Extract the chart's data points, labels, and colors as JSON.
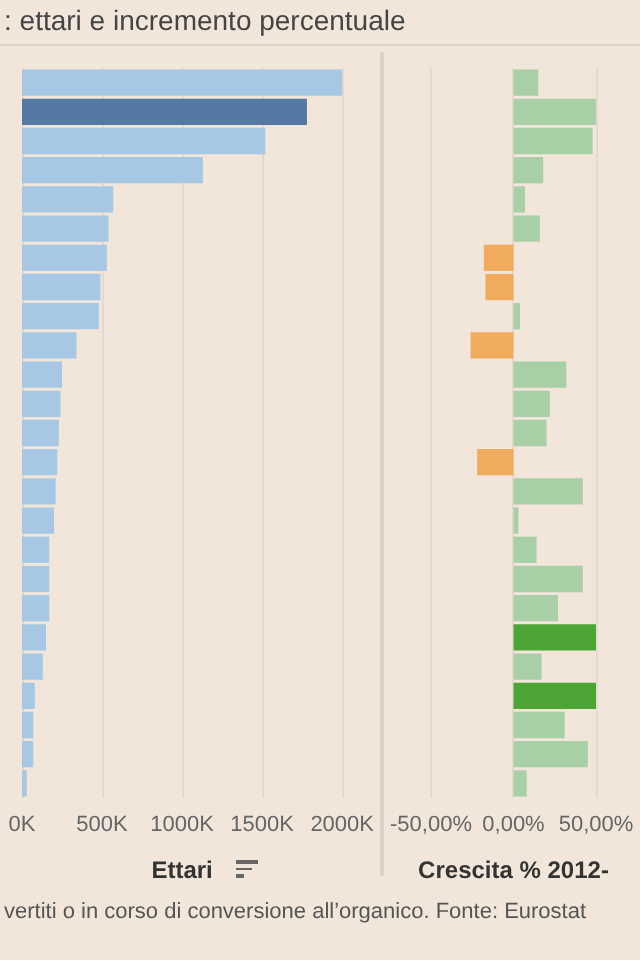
{
  "chart_data": [
    {
      "type": "bar",
      "orientation": "horizontal",
      "title": ": ettari e incremento percentuale",
      "annotations": [
        "vertiti o in corso di conversione all’organico. Fonte: Eurostat"
      ],
      "xlabel": "Ettari",
      "categories": [
        null,
        null,
        null,
        null,
        null,
        null,
        null,
        null,
        null,
        null,
        null,
        null,
        null,
        null,
        null,
        null,
        null,
        null,
        null,
        null,
        null,
        null,
        null,
        null,
        null
      ],
      "values": [
        2000,
        1780,
        1520,
        1130,
        570,
        540,
        530,
        490,
        480,
        340,
        250,
        240,
        230,
        220,
        210,
        200,
        170,
        170,
        170,
        150,
        130,
        80,
        70,
        70,
        30
      ],
      "colors": [
        "#a6c8e4",
        "#5579a5",
        "#a6c8e4",
        "#a6c8e4",
        "#a6c8e4",
        "#a6c8e4",
        "#a6c8e4",
        "#a6c8e4",
        "#a6c8e4",
        "#a6c8e4",
        "#a6c8e4",
        "#a6c8e4",
        "#a6c8e4",
        "#a6c8e4",
        "#a6c8e4",
        "#a6c8e4",
        "#a6c8e4",
        "#a6c8e4",
        "#a6c8e4",
        "#a6c8e4",
        "#a6c8e4",
        "#a6c8e4",
        "#a6c8e4",
        "#a6c8e4",
        "#a6c8e4"
      ],
      "xlim": [
        0,
        2000
      ],
      "xticks": [
        {
          "value": 0,
          "label": "0K"
        },
        {
          "value": 500,
          "label": "500K"
        },
        {
          "value": 1000,
          "label": "1000K"
        },
        {
          "value": 1500,
          "label": "1500K"
        },
        {
          "value": 2000,
          "label": "2000K"
        }
      ],
      "grid": "x"
    },
    {
      "type": "bar",
      "orientation": "horizontal",
      "xlabel": "Crescita % 2012-",
      "categories": [
        null,
        null,
        null,
        null,
        null,
        null,
        null,
        null,
        null,
        null,
        null,
        null,
        null,
        null,
        null,
        null,
        null,
        null,
        null,
        null,
        null,
        null,
        null,
        null,
        null
      ],
      "values": [
        15,
        50,
        48,
        18,
        7,
        16,
        -18,
        -17,
        4,
        -26,
        32,
        22,
        20,
        -22,
        42,
        3,
        14,
        42,
        27,
        50,
        17,
        50,
        31,
        45,
        8
      ],
      "colors": [
        "#a8cfa5",
        "#a8cfa5",
        "#a8cfa5",
        "#a8cfa5",
        "#a8cfa5",
        "#a8cfa5",
        "#f0ac5c",
        "#f0ac5c",
        "#a8cfa5",
        "#f0ac5c",
        "#a8cfa5",
        "#a8cfa5",
        "#a8cfa5",
        "#f0ac5c",
        "#a8cfa5",
        "#a8cfa5",
        "#a8cfa5",
        "#a8cfa5",
        "#a8cfa5",
        "#4ca535",
        "#a8cfa5",
        "#4ca535",
        "#a8cfa5",
        "#a8cfa5",
        "#a8cfa5"
      ],
      "xlim": [
        -50,
        50
      ],
      "xticks": [
        {
          "value": -50,
          "label": "-50,00%"
        },
        {
          "value": 0,
          "label": "0,00%"
        },
        {
          "value": 50,
          "label": "50,00%"
        }
      ],
      "grid": "x"
    }
  ]
}
